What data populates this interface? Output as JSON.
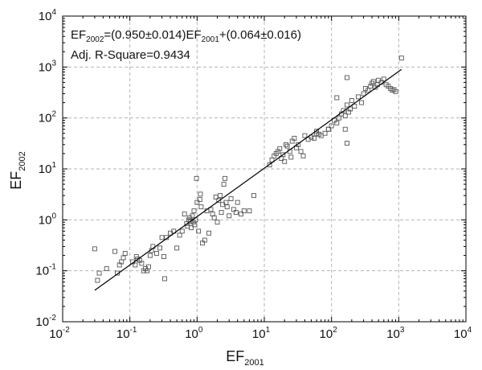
{
  "chart_data": {
    "type": "scatter",
    "x_scale": "log",
    "y_scale": "log",
    "xlim": [
      0.01,
      10000
    ],
    "ylim": [
      0.01,
      10000
    ],
    "grid": true,
    "x_ticks": [
      {
        "base": "10",
        "exp": "-2"
      },
      {
        "base": "10",
        "exp": "-1"
      },
      {
        "base": "10",
        "exp": "0"
      },
      {
        "base": "10",
        "exp": "1"
      },
      {
        "base": "10",
        "exp": "2"
      },
      {
        "base": "10",
        "exp": "3"
      },
      {
        "base": "10",
        "exp": "4"
      }
    ],
    "y_ticks": [
      {
        "base": "10",
        "exp": "-2"
      },
      {
        "base": "10",
        "exp": "-1"
      },
      {
        "base": "10",
        "exp": "0"
      },
      {
        "base": "10",
        "exp": "1"
      },
      {
        "base": "10",
        "exp": "2"
      },
      {
        "base": "10",
        "exp": "3"
      },
      {
        "base": "10",
        "exp": "4"
      }
    ],
    "xlabel": {
      "main": "EF",
      "sub": "2001"
    },
    "ylabel": {
      "main": "EF",
      "sub": "2002"
    },
    "annotation": {
      "line1": {
        "p1": "EF",
        "s1": "2002",
        "p2": "=(0.950±0.014)EF",
        "s2": "2001",
        "p3": "+(0.064±0.016)"
      },
      "line2": "Adj. R-Square=0.9434"
    },
    "fit": {
      "slope": 0.95,
      "intercept": 0.064,
      "x_range": [
        0.03,
        1100
      ]
    },
    "marker_color": "#555555",
    "line_color": "#000000",
    "points": [
      [
        0.03,
        0.27
      ],
      [
        0.033,
        0.065
      ],
      [
        0.035,
        0.09
      ],
      [
        0.045,
        0.11
      ],
      [
        0.06,
        0.24
      ],
      [
        0.065,
        0.09
      ],
      [
        0.07,
        0.13
      ],
      [
        0.075,
        0.15
      ],
      [
        0.08,
        0.18
      ],
      [
        0.085,
        0.22
      ],
      [
        0.11,
        0.15
      ],
      [
        0.12,
        0.13
      ],
      [
        0.125,
        0.19
      ],
      [
        0.13,
        0.17
      ],
      [
        0.14,
        0.16
      ],
      [
        0.15,
        0.14
      ],
      [
        0.16,
        0.1
      ],
      [
        0.17,
        0.11
      ],
      [
        0.18,
        0.1
      ],
      [
        0.19,
        0.12
      ],
      [
        0.2,
        0.2
      ],
      [
        0.21,
        0.25
      ],
      [
        0.22,
        0.3
      ],
      [
        0.25,
        0.22
      ],
      [
        0.28,
        0.28
      ],
      [
        0.3,
        0.45
      ],
      [
        0.32,
        0.19
      ],
      [
        0.33,
        0.07
      ],
      [
        0.35,
        0.45
      ],
      [
        0.4,
        0.55
      ],
      [
        0.45,
        0.6
      ],
      [
        0.5,
        0.28
      ],
      [
        0.55,
        0.5
      ],
      [
        0.6,
        0.6
      ],
      [
        0.65,
        1.3
      ],
      [
        0.7,
        0.85
      ],
      [
        0.72,
        0.75
      ],
      [
        0.75,
        1.0
      ],
      [
        0.78,
        1.1
      ],
      [
        0.8,
        0.95
      ],
      [
        0.82,
        0.7
      ],
      [
        0.85,
        1.2
      ],
      [
        0.88,
        0.9
      ],
      [
        0.9,
        1.5
      ],
      [
        0.92,
        0.8
      ],
      [
        0.95,
        1.0
      ],
      [
        0.98,
        6.5
      ],
      [
        1.0,
        2.2
      ],
      [
        1.05,
        0.6
      ],
      [
        1.1,
        2.5
      ],
      [
        1.12,
        3.2
      ],
      [
        1.15,
        1.8
      ],
      [
        1.2,
        0.35
      ],
      [
        1.3,
        0.4
      ],
      [
        1.4,
        1.5
      ],
      [
        1.5,
        0.55
      ],
      [
        1.6,
        1.6
      ],
      [
        1.7,
        1.3
      ],
      [
        1.8,
        1.1
      ],
      [
        1.9,
        2.8
      ],
      [
        2.0,
        0.9
      ],
      [
        2.1,
        2.4
      ],
      [
        2.2,
        3.0
      ],
      [
        2.3,
        1.4
      ],
      [
        2.4,
        2.0
      ],
      [
        2.5,
        5.0
      ],
      [
        2.6,
        6.5
      ],
      [
        2.7,
        2.2
      ],
      [
        2.8,
        1.8
      ],
      [
        3.0,
        1.2
      ],
      [
        3.2,
        2.6
      ],
      [
        3.5,
        1.6
      ],
      [
        3.8,
        1.4
      ],
      [
        4.0,
        2.2
      ],
      [
        4.5,
        1.3
      ],
      [
        5.0,
        1.5
      ],
      [
        6.0,
        1.5
      ],
      [
        7.0,
        3.0
      ],
      [
        12.0,
        12.0
      ],
      [
        13.0,
        15.0
      ],
      [
        14.0,
        18.0
      ],
      [
        15.0,
        20.0
      ],
      [
        16.0,
        22.0
      ],
      [
        17.0,
        25.0
      ],
      [
        18.0,
        16.0
      ],
      [
        19.0,
        19.0
      ],
      [
        20.0,
        14.0
      ],
      [
        21.0,
        30.0
      ],
      [
        22.0,
        28.0
      ],
      [
        24.0,
        22.0
      ],
      [
        25.0,
        17.0
      ],
      [
        26.0,
        35.0
      ],
      [
        28.0,
        40.0
      ],
      [
        30.0,
        26.0
      ],
      [
        32.0,
        30.0
      ],
      [
        35.0,
        22.0
      ],
      [
        38.0,
        18.0
      ],
      [
        40.0,
        45.0
      ],
      [
        45.0,
        38.0
      ],
      [
        50.0,
        42.0
      ],
      [
        55.0,
        40.0
      ],
      [
        60.0,
        55.0
      ],
      [
        65.0,
        48.0
      ],
      [
        70.0,
        45.0
      ],
      [
        80.0,
        50.0
      ],
      [
        90.0,
        60.0
      ],
      [
        100.0,
        70.0
      ],
      [
        110.0,
        90.0
      ],
      [
        120.0,
        80.0
      ],
      [
        130.0,
        100.0
      ],
      [
        140.0,
        120.0
      ],
      [
        150.0,
        140.0
      ],
      [
        160.0,
        110.0
      ],
      [
        170.0,
        180.0
      ],
      [
        180.0,
        130.0
      ],
      [
        190.0,
        150.0
      ],
      [
        200.0,
        220.0
      ],
      [
        220.0,
        170.0
      ],
      [
        250.0,
        260.0
      ],
      [
        280.0,
        200.0
      ],
      [
        300.0,
        300.0
      ],
      [
        320.0,
        380.0
      ],
      [
        350.0,
        350.0
      ],
      [
        380.0,
        420.0
      ],
      [
        400.0,
        480.0
      ],
      [
        420.0,
        520.0
      ],
      [
        450.0,
        400.0
      ],
      [
        480.0,
        450.0
      ],
      [
        500.0,
        550.0
      ],
      [
        550.0,
        500.0
      ],
      [
        600.0,
        580.0
      ],
      [
        650.0,
        450.0
      ],
      [
        700.0,
        420.0
      ],
      [
        750.0,
        380.0
      ],
      [
        800.0,
        350.0
      ],
      [
        850.0,
        360.0
      ],
      [
        900.0,
        330.0
      ],
      [
        1100.0,
        1500.0
      ],
      [
        170.0,
        620.0
      ],
      [
        120.0,
        250.0
      ],
      [
        160.0,
        60.0
      ],
      [
        90.0,
        60.0
      ],
      [
        170.0,
        32.0
      ],
      [
        60.0,
        50.0
      ]
    ]
  }
}
